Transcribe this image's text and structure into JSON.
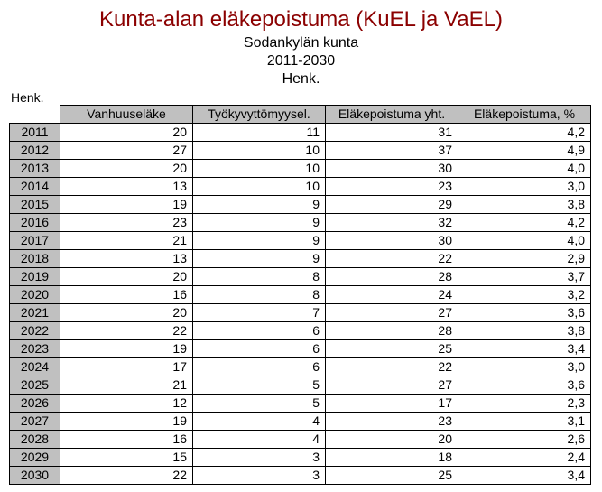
{
  "title": "Kunta-alan eläkepoistuma (KuEL ja VaEL)",
  "subtitle1": "Sodankylän kunta",
  "subtitle2": "2011-2030",
  "subtitle3": "Henk.",
  "henk_left": "Henk.",
  "table": {
    "columns": [
      "Vanhuuseläke",
      "Työkyvyttömyysel.",
      "Eläkepoistuma yht.",
      "Eläkepoistuma, %"
    ],
    "rows": [
      {
        "year": "2011",
        "v": [
          "20",
          "11",
          "31",
          "4,2"
        ]
      },
      {
        "year": "2012",
        "v": [
          "27",
          "10",
          "37",
          "4,9"
        ]
      },
      {
        "year": "2013",
        "v": [
          "20",
          "10",
          "30",
          "4,0"
        ]
      },
      {
        "year": "2014",
        "v": [
          "13",
          "10",
          "23",
          "3,0"
        ]
      },
      {
        "year": "2015",
        "v": [
          "19",
          "9",
          "29",
          "3,8"
        ]
      },
      {
        "year": "2016",
        "v": [
          "23",
          "9",
          "32",
          "4,2"
        ]
      },
      {
        "year": "2017",
        "v": [
          "21",
          "9",
          "30",
          "4,0"
        ]
      },
      {
        "year": "2018",
        "v": [
          "13",
          "9",
          "22",
          "2,9"
        ]
      },
      {
        "year": "2019",
        "v": [
          "20",
          "8",
          "28",
          "3,7"
        ]
      },
      {
        "year": "2020",
        "v": [
          "16",
          "8",
          "24",
          "3,2"
        ]
      },
      {
        "year": "2021",
        "v": [
          "20",
          "7",
          "27",
          "3,6"
        ]
      },
      {
        "year": "2022",
        "v": [
          "22",
          "6",
          "28",
          "3,8"
        ]
      },
      {
        "year": "2023",
        "v": [
          "19",
          "6",
          "25",
          "3,4"
        ]
      },
      {
        "year": "2024",
        "v": [
          "17",
          "6",
          "22",
          "3,0"
        ]
      },
      {
        "year": "2025",
        "v": [
          "21",
          "5",
          "27",
          "3,6"
        ]
      },
      {
        "year": "2026",
        "v": [
          "12",
          "5",
          "17",
          "2,3"
        ]
      },
      {
        "year": "2027",
        "v": [
          "19",
          "4",
          "23",
          "3,1"
        ]
      },
      {
        "year": "2028",
        "v": [
          "16",
          "4",
          "20",
          "2,6"
        ]
      },
      {
        "year": "2029",
        "v": [
          "15",
          "3",
          "18",
          "2,4"
        ]
      },
      {
        "year": "2030",
        "v": [
          "22",
          "3",
          "25",
          "3,4"
        ]
      }
    ]
  }
}
